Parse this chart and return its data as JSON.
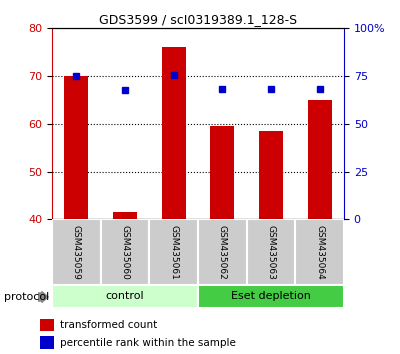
{
  "title": "GDS3599 / scI0319389.1_128-S",
  "samples": [
    "GSM435059",
    "GSM435060",
    "GSM435061",
    "GSM435062",
    "GSM435063",
    "GSM435064"
  ],
  "transformed_counts": [
    70.0,
    41.5,
    76.0,
    59.5,
    58.5,
    65.0
  ],
  "percentile_ranks": [
    75.0,
    67.5,
    75.5,
    68.5,
    68.5,
    68.5
  ],
  "ylim_left": [
    40,
    80
  ],
  "ylim_right": [
    0,
    100
  ],
  "yticks_left": [
    40,
    50,
    60,
    70,
    80
  ],
  "yticks_right": [
    0,
    25,
    50,
    75,
    100
  ],
  "ytick_labels_right": [
    "0",
    "25",
    "50",
    "75",
    "100%"
  ],
  "bar_color": "#cc0000",
  "marker_color": "#0000cc",
  "bar_width": 0.5,
  "control_group_color": "#ccffcc",
  "eset_group_color": "#44cc44",
  "sample_box_color": "#cccccc",
  "protocol_label": "protocol",
  "legend_label_tc": "transformed count",
  "legend_label_pr": "percentile rank within the sample",
  "left_axis_color": "#cc0000",
  "right_axis_color": "#0000cc"
}
